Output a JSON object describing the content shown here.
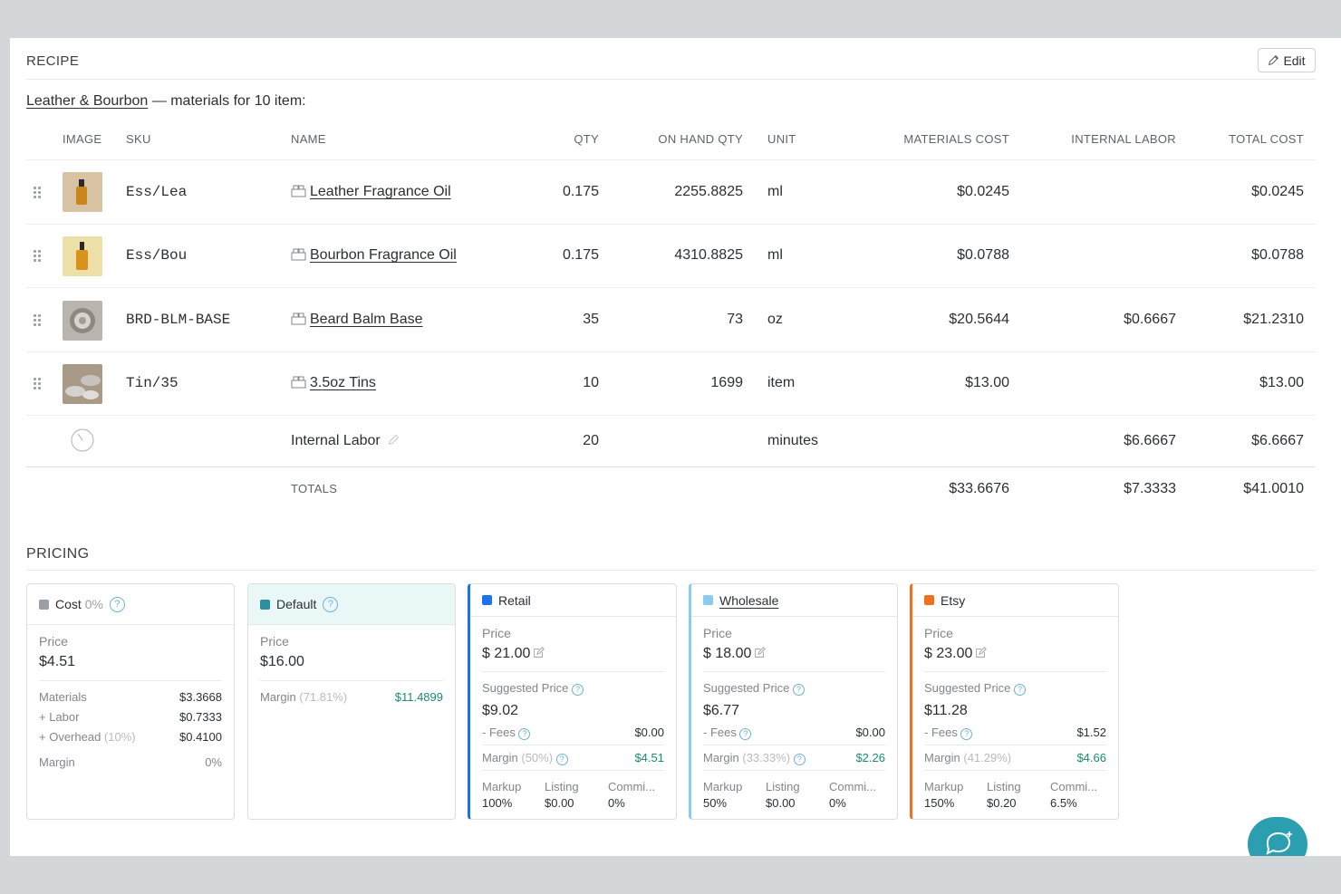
{
  "recipe": {
    "title": "RECIPE",
    "edit_label": "Edit",
    "product_name": "Leather & Bourbon",
    "subtitle_suffix": " — materials for 10 item:",
    "columns": {
      "image": "IMAGE",
      "sku": "SKU",
      "name": "NAME",
      "qty": "QTY",
      "on_hand": "ON HAND QTY",
      "unit": "UNIT",
      "materials_cost": "MATERIALS COST",
      "internal_labor": "INTERNAL LABOR",
      "total_cost": "TOTAL COST"
    },
    "rows": [
      {
        "sku": "Ess/Lea",
        "name": "Leather Fragrance Oil",
        "qty": "0.175",
        "on_hand": "2255.8825",
        "unit": "ml",
        "materials_cost": "$0.0245",
        "internal_labor": "",
        "total_cost": "$0.0245"
      },
      {
        "sku": "Ess/Bou",
        "name": "Bourbon Fragrance Oil",
        "qty": "0.175",
        "on_hand": "4310.8825",
        "unit": "ml",
        "materials_cost": "$0.0788",
        "internal_labor": "",
        "total_cost": "$0.0788"
      },
      {
        "sku": "BRD-BLM-BASE",
        "name": "Beard Balm Base",
        "qty": "35",
        "on_hand": "73",
        "unit": "oz",
        "materials_cost": "$20.5644",
        "internal_labor": "$0.6667",
        "total_cost": "$21.2310"
      },
      {
        "sku": "Tin/35",
        "name": "3.5oz Tins",
        "qty": "10",
        "on_hand": "1699",
        "unit": "item",
        "materials_cost": "$13.00",
        "internal_labor": "",
        "total_cost": "$13.00"
      }
    ],
    "labor_row": {
      "name": "Internal Labor",
      "qty": "20",
      "unit": "minutes",
      "internal_labor": "$6.6667",
      "total_cost": "$6.6667"
    },
    "totals": {
      "label": "TOTALS",
      "materials_cost": "$33.6676",
      "internal_labor": "$7.3333",
      "total_cost": "$41.0010"
    }
  },
  "pricing": {
    "title": "PRICING",
    "cost_card": {
      "name": "Cost",
      "pct": "0%",
      "price_label": "Price",
      "price": "$4.51",
      "materials_label": "Materials",
      "materials": "$3.3668",
      "labor_label": "+ Labor",
      "labor": "$0.7333",
      "overhead_label": "+ Overhead",
      "overhead_pct": "(10%)",
      "overhead": "$0.4100",
      "margin_label": "Margin",
      "margin": "0%",
      "color": "#9aa0a6"
    },
    "default_card": {
      "name": "Default",
      "price_label": "Price",
      "price": "$16.00",
      "margin_label": "Margin",
      "margin_pct": "(71.81%)",
      "margin": "$11.4899",
      "color": "#2e8fa0"
    },
    "channel_cards": [
      {
        "name": "Retail",
        "color": "#1a73e8",
        "price_label": "Price",
        "price": "$ 21.00",
        "suggested_label": "Suggested Price",
        "suggested": "$9.02",
        "fees_label": "- Fees",
        "fees": "$0.00",
        "margin_label": "Margin",
        "margin_pct": "(50%)",
        "margin": "$4.51",
        "markup_label": "Markup",
        "markup": "100%",
        "listing_label": "Listing",
        "listing": "$0.00",
        "commission_label": "Commi...",
        "commission": "0%"
      },
      {
        "name": "Wholesale",
        "color": "#8ccbf0",
        "price_label": "Price",
        "price": "$ 18.00",
        "suggested_label": "Suggested Price",
        "suggested": "$6.77",
        "fees_label": "- Fees",
        "fees": "$0.00",
        "margin_label": "Margin",
        "margin_pct": "(33.33%)",
        "margin": "$2.26",
        "markup_label": "Markup",
        "markup": "50%",
        "listing_label": "Listing",
        "listing": "$0.00",
        "commission_label": "Commi...",
        "commission": "0%"
      },
      {
        "name": "Etsy",
        "color": "#f07022",
        "price_label": "Price",
        "price": "$ 23.00",
        "suggested_label": "Suggested Price",
        "suggested": "$11.28",
        "fees_label": "- Fees",
        "fees": "$1.52",
        "margin_label": "Margin",
        "margin_pct": "(41.29%)",
        "margin": "$4.66",
        "markup_label": "Markup",
        "markup": "150%",
        "listing_label": "Listing",
        "listing": "$0.20",
        "commission_label": "Commi...",
        "commission": "6.5%"
      }
    ]
  },
  "icons": [
    "drag-handle-icon",
    "box-icon",
    "timer-icon",
    "pencil-icon",
    "help-icon",
    "edit-price-icon",
    "chat-icon"
  ]
}
